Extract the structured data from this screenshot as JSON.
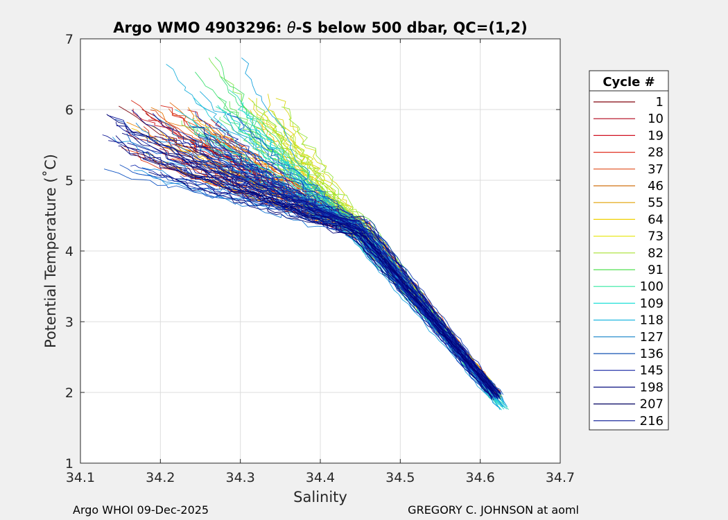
{
  "chart_data": {
    "type": "line",
    "title_prefix": "Argo WMO 4903296: ",
    "title_symbol": "θ",
    "title_suffix": "-S below 500 dbar,  QC=(1,2)",
    "xlabel": "Salinity",
    "ylabel": "Potential Temperature (˚C)",
    "xlim": [
      34.1,
      34.7
    ],
    "ylim": [
      1,
      7
    ],
    "xticks": [
      "34.1",
      "34.2",
      "34.3",
      "34.4",
      "34.5",
      "34.6",
      "34.7"
    ],
    "yticks": [
      "1",
      "2",
      "3",
      "4",
      "5",
      "6",
      "7"
    ],
    "grid": true,
    "legend_title": "Cycle #",
    "legend_position": "outside-right",
    "legend": [
      {
        "label": "1",
        "color": "#80000a"
      },
      {
        "label": "10",
        "color": "#b00018"
      },
      {
        "label": "19",
        "color": "#d01020"
      },
      {
        "label": "28",
        "color": "#e03020"
      },
      {
        "label": "37",
        "color": "#e04a18"
      },
      {
        "label": "46",
        "color": "#d07010"
      },
      {
        "label": "55",
        "color": "#e0a000"
      },
      {
        "label": "64",
        "color": "#f0d000"
      },
      {
        "label": "73",
        "color": "#e8e820"
      },
      {
        "label": "82",
        "color": "#a8e030"
      },
      {
        "label": "91",
        "color": "#50e050"
      },
      {
        "label": "100",
        "color": "#30e8a0"
      },
      {
        "label": "109",
        "color": "#20e0d8"
      },
      {
        "label": "118",
        "color": "#20b8e0"
      },
      {
        "label": "127",
        "color": "#1080c8"
      },
      {
        "label": "136",
        "color": "#1050b0"
      },
      {
        "label": "145",
        "color": "#1020a0"
      },
      {
        "label": "198",
        "color": "#0a1080"
      },
      {
        "label": "207",
        "color": "#000060"
      },
      {
        "label": "216",
        "color": "#001090"
      }
    ],
    "series_envelope": {
      "description_values": "approximate theta-S curves per cycle",
      "deep_end": {
        "s": 34.62,
        "t": 1.95
      },
      "bend": {
        "s": 34.45,
        "t": 4.3
      }
    }
  },
  "footer": {
    "left": "Argo WHOI 09-Dec-2025",
    "right": "GREGORY C. JOHNSON at aoml"
  }
}
